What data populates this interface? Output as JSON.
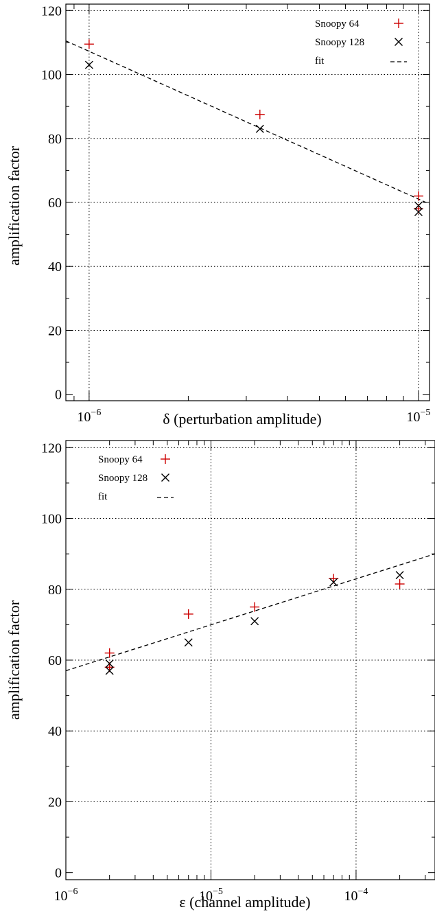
{
  "chart_data": [
    {
      "type": "scatter",
      "xscale": "log",
      "xlim": [
        8.5e-07,
        1.08e-05
      ],
      "ylim": [
        -2,
        122
      ],
      "grid": true,
      "legend_position": "top-right",
      "xlabel": "δ (perturbation amplitude)",
      "ylabel": "amplification factor",
      "y_ticks": [
        {
          "value": 0,
          "label": "0"
        },
        {
          "value": 20,
          "label": "20"
        },
        {
          "value": 40,
          "label": "40"
        },
        {
          "value": 60,
          "label": "60"
        },
        {
          "value": 80,
          "label": "80"
        },
        {
          "value": 100,
          "label": "100"
        },
        {
          "value": 120,
          "label": "120"
        }
      ],
      "x_major_ticks": [
        {
          "value": 1e-06,
          "base": "10",
          "exp": "−6"
        },
        {
          "value": 1e-05,
          "base": "10",
          "exp": "−5"
        }
      ],
      "x_gridlines": [
        1e-06,
        1e-05
      ],
      "series": [
        {
          "name": "Snoopy 64",
          "marker": "plus",
          "color": "#cc0000",
          "points": [
            {
              "x": 1e-06,
              "y": 109.5
            },
            {
              "x": 3.3e-06,
              "y": 87.5
            },
            {
              "x": 1e-05,
              "y": 62
            },
            {
              "x": 1e-05,
              "y": 58
            }
          ]
        },
        {
          "name": "Snoopy 128",
          "marker": "cross",
          "color": "#000000",
          "points": [
            {
              "x": 1e-06,
              "y": 103
            },
            {
              "x": 3.3e-06,
              "y": 83
            },
            {
              "x": 1e-05,
              "y": 59
            },
            {
              "x": 1e-05,
              "y": 57
            }
          ]
        },
        {
          "name": "fit",
          "marker": "line",
          "color": "#000000",
          "points": [
            {
              "x": 8.5e-07,
              "y": 110.5
            },
            {
              "x": 1.08e-05,
              "y": 59.5
            }
          ]
        }
      ]
    },
    {
      "type": "scatter",
      "xscale": "log",
      "xlim": [
        1e-06,
        0.00035
      ],
      "ylim": [
        -2,
        122
      ],
      "grid": true,
      "legend_position": "top-left",
      "xlabel": "ε (channel amplitude)",
      "ylabel": "amplification factor",
      "y_ticks": [
        {
          "value": 0,
          "label": "0"
        },
        {
          "value": 20,
          "label": "20"
        },
        {
          "value": 40,
          "label": "40"
        },
        {
          "value": 60,
          "label": "60"
        },
        {
          "value": 80,
          "label": "80"
        },
        {
          "value": 100,
          "label": "100"
        },
        {
          "value": 120,
          "label": "120"
        }
      ],
      "x_major_ticks": [
        {
          "value": 1e-06,
          "base": "10",
          "exp": "−6"
        },
        {
          "value": 1e-05,
          "base": "10",
          "exp": "−5"
        },
        {
          "value": 0.0001,
          "base": "10",
          "exp": "−4"
        }
      ],
      "x_gridlines": [
        1e-05,
        0.0001
      ],
      "series": [
        {
          "name": "Snoopy 64",
          "marker": "plus",
          "color": "#cc0000",
          "points": [
            {
              "x": 2e-06,
              "y": 62
            },
            {
              "x": 2e-06,
              "y": 58
            },
            {
              "x": 7e-06,
              "y": 73
            },
            {
              "x": 2e-05,
              "y": 75
            },
            {
              "x": 7e-05,
              "y": 83
            },
            {
              "x": 0.0002,
              "y": 81.5
            }
          ]
        },
        {
          "name": "Snoopy 128",
          "marker": "cross",
          "color": "#000000",
          "points": [
            {
              "x": 2e-06,
              "y": 59
            },
            {
              "x": 2e-06,
              "y": 57
            },
            {
              "x": 7e-06,
              "y": 65
            },
            {
              "x": 2e-05,
              "y": 71
            },
            {
              "x": 7e-05,
              "y": 82
            },
            {
              "x": 0.0002,
              "y": 84
            }
          ]
        },
        {
          "name": "fit",
          "marker": "line",
          "color": "#000000",
          "points": [
            {
              "x": 1e-06,
              "y": 57
            },
            {
              "x": 0.00035,
              "y": 90
            }
          ]
        }
      ]
    }
  ]
}
